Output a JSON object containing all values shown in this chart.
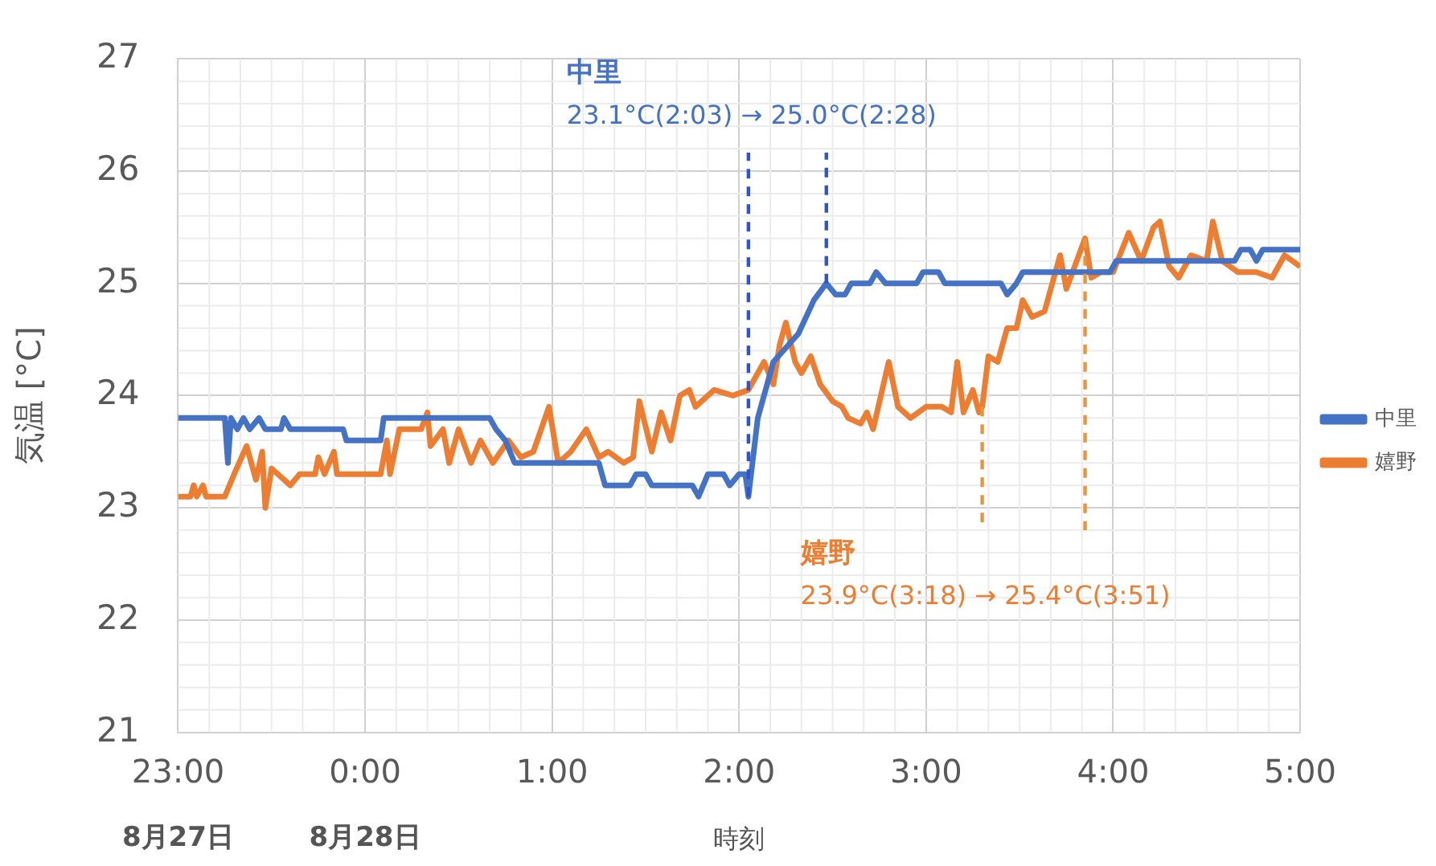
{
  "chart_data": {
    "type": "line",
    "xlabel": "時刻",
    "ylabel": "気温 [°C]",
    "xlim": [
      "--08-27T23:00",
      "--08-28T05:00"
    ],
    "xticks": [
      {
        "value": "--08-27T23:00",
        "label": "23:00"
      },
      {
        "value": "--08-28T00:00",
        "label": "0:00"
      },
      {
        "value": "--08-28T01:00",
        "label": "1:00"
      },
      {
        "value": "--08-28T02:00",
        "label": "2:00"
      },
      {
        "value": "--08-28T03:00",
        "label": "3:00"
      },
      {
        "value": "--08-28T04:00",
        "label": "4:00"
      },
      {
        "value": "--08-28T05:00",
        "label": "5:00"
      }
    ],
    "ylim": [
      21,
      27
    ],
    "yticks": [
      21,
      22,
      23,
      24,
      25,
      26,
      27
    ],
    "grid": true,
    "legend": "right",
    "marker": "none",
    "line_style": "solid",
    "series": [
      {
        "name": "中里",
        "color": "#4472c4",
        "x": [
          "--08-27T23:00",
          "--08-27T23:15",
          "--08-27T23:16",
          "--08-27T23:17",
          "--08-27T23:19",
          "--08-27T23:21",
          "--08-27T23:23",
          "--08-27T23:26",
          "--08-27T23:28",
          "--08-27T23:33",
          "--08-27T23:34",
          "--08-27T23:36",
          "--08-27T23:53",
          "--08-27T23:54",
          "--08-28T00:05",
          "--08-28T00:06",
          "--08-28T00:40",
          "--08-28T00:42",
          "--08-28T00:45",
          "--08-28T00:48",
          "--08-28T01:15",
          "--08-28T01:17",
          "--08-28T01:25",
          "--08-28T01:27",
          "--08-28T01:30",
          "--08-28T01:32",
          "--08-28T01:45",
          "--08-28T01:47",
          "--08-28T01:50",
          "--08-28T01:55",
          "--08-28T01:57",
          "--08-28T02:00",
          "--08-28T02:02",
          "--08-28T02:03",
          "--08-28T02:06",
          "--08-28T02:11",
          "--08-28T02:19",
          "--08-28T02:24",
          "--08-28T02:28",
          "--08-28T02:31",
          "--08-28T02:34",
          "--08-28T02:36",
          "--08-28T02:42",
          "--08-28T02:44",
          "--08-28T02:47",
          "--08-28T02:57",
          "--08-28T02:59",
          "--08-28T03:04",
          "--08-28T03:06",
          "--08-28T03:24",
          "--08-28T03:26",
          "--08-28T03:29",
          "--08-28T03:31",
          "--08-28T03:59",
          "--08-28T04:01",
          "--08-28T04:39",
          "--08-28T04:41",
          "--08-28T04:44",
          "--08-28T04:46",
          "--08-28T04:48",
          "--08-28T05:00"
        ],
        "values": [
          23.8,
          23.8,
          23.4,
          23.8,
          23.7,
          23.8,
          23.7,
          23.8,
          23.7,
          23.7,
          23.8,
          23.7,
          23.7,
          23.6,
          23.6,
          23.8,
          23.8,
          23.7,
          23.6,
          23.4,
          23.4,
          23.2,
          23.2,
          23.3,
          23.3,
          23.2,
          23.2,
          23.1,
          23.3,
          23.3,
          23.2,
          23.3,
          23.3,
          23.1,
          23.8,
          24.3,
          24.55,
          24.85,
          25.0,
          24.9,
          24.9,
          25.0,
          25.0,
          25.1,
          25.0,
          25.0,
          25.1,
          25.1,
          25.0,
          25.0,
          24.9,
          25.0,
          25.1,
          25.1,
          25.2,
          25.2,
          25.3,
          25.3,
          25.2,
          25.3,
          25.3
        ]
      },
      {
        "name": "嬉野",
        "color": "#ed7d31",
        "x": [
          "--08-27T23:00",
          "--08-27T23:04",
          "--08-27T23:05",
          "--08-27T23:06",
          "--08-27T23:08",
          "--08-27T23:09",
          "--08-27T23:15",
          "--08-27T23:18",
          "--08-27T23:22",
          "--08-27T23:25",
          "--08-27T23:27",
          "--08-27T23:28",
          "--08-27T23:30",
          "--08-27T23:36",
          "--08-27T23:39",
          "--08-27T23:44",
          "--08-27T23:45",
          "--08-27T23:47",
          "--08-27T23:50",
          "--08-27T23:51",
          "--08-28T00:05",
          "--08-28T00:07",
          "--08-28T00:08",
          "--08-28T00:11",
          "--08-28T00:18",
          "--08-28T00:20",
          "--08-28T00:21",
          "--08-28T00:25",
          "--08-28T00:27",
          "--08-28T00:30",
          "--08-28T00:34",
          "--08-28T00:37",
          "--08-28T00:41",
          "--08-28T00:46",
          "--08-28T00:50",
          "--08-28T00:54",
          "--08-28T00:59",
          "--08-28T01:02",
          "--08-28T01:06",
          "--08-28T01:11",
          "--08-28T01:15",
          "--08-28T01:18",
          "--08-28T01:23",
          "--08-28T01:26",
          "--08-28T01:28",
          "--08-28T01:32",
          "--08-28T01:35",
          "--08-28T01:38",
          "--08-28T01:41",
          "--08-28T01:44",
          "--08-28T01:46",
          "--08-28T01:52",
          "--08-28T01:58",
          "--08-28T02:03",
          "--08-28T02:08",
          "--08-28T02:11",
          "--08-28T02:13",
          "--08-28T02:15",
          "--08-28T02:18",
          "--08-28T02:20",
          "--08-28T02:23",
          "--08-28T02:26",
          "--08-28T02:30",
          "--08-28T02:33",
          "--08-28T02:35",
          "--08-28T02:39",
          "--08-28T02:41",
          "--08-28T02:43",
          "--08-28T02:48",
          "--08-28T02:51",
          "--08-28T02:55",
          "--08-28T03:00",
          "--08-28T03:05",
          "--08-28T03:08",
          "--08-28T03:10",
          "--08-28T03:12",
          "--08-28T03:15",
          "--08-28T03:17",
          "--08-28T03:18",
          "--08-28T03:20",
          "--08-28T03:23",
          "--08-28T03:26",
          "--08-28T03:29",
          "--08-28T03:31",
          "--08-28T03:34",
          "--08-28T03:38",
          "--08-28T03:40",
          "--08-28T03:43",
          "--08-28T03:45",
          "--08-28T03:51",
          "--08-28T03:53",
          "--08-28T03:56",
          "--08-28T04:00",
          "--08-28T04:05",
          "--08-28T04:09",
          "--08-28T04:13",
          "--08-28T04:15",
          "--08-28T04:18",
          "--08-28T04:21",
          "--08-28T04:25",
          "--08-28T04:30",
          "--08-28T04:32",
          "--08-28T04:35",
          "--08-28T04:40",
          "--08-28T04:46",
          "--08-28T04:51",
          "--08-28T04:55",
          "--08-28T05:00"
        ],
        "values": [
          23.1,
          23.1,
          23.2,
          23.1,
          23.2,
          23.1,
          23.1,
          23.3,
          23.55,
          23.25,
          23.5,
          23.0,
          23.35,
          23.2,
          23.3,
          23.3,
          23.45,
          23.3,
          23.5,
          23.3,
          23.3,
          23.6,
          23.3,
          23.7,
          23.7,
          23.85,
          23.55,
          23.7,
          23.4,
          23.7,
          23.4,
          23.6,
          23.4,
          23.6,
          23.45,
          23.5,
          23.9,
          23.4,
          23.5,
          23.7,
          23.45,
          23.5,
          23.4,
          23.45,
          23.95,
          23.5,
          23.85,
          23.6,
          24.0,
          24.05,
          23.9,
          24.05,
          24.0,
          24.05,
          24.3,
          24.1,
          24.45,
          24.65,
          24.3,
          24.2,
          24.35,
          24.1,
          23.95,
          23.9,
          23.8,
          23.75,
          23.85,
          23.7,
          24.3,
          23.9,
          23.8,
          23.9,
          23.9,
          23.85,
          24.3,
          23.85,
          24.05,
          23.85,
          23.9,
          24.35,
          24.3,
          24.6,
          24.6,
          24.85,
          24.7,
          24.75,
          24.95,
          25.25,
          24.95,
          25.4,
          25.05,
          25.1,
          25.1,
          25.45,
          25.2,
          25.5,
          25.55,
          25.15,
          25.05,
          25.25,
          25.2,
          25.55,
          25.2,
          25.1,
          25.1,
          25.05,
          25.25,
          25.15
        ]
      }
    ],
    "ref_lines": [
      {
        "axis": "x",
        "value": "--08-28T02:03",
        "color": "#2f55c9",
        "line_style": "dashed"
      },
      {
        "axis": "x",
        "value": "--08-28T02:28",
        "color": "#2f55c9",
        "line_style": "dashed"
      },
      {
        "axis": "x",
        "value": "--08-28T03:18",
        "color": "#e8963e",
        "line_style": "dashed"
      },
      {
        "axis": "x",
        "value": "--08-28T03:51",
        "color": "#e8963e",
        "line_style": "dashed"
      }
    ],
    "annotations": [
      "中里",
      "23.1°C(2:03) → 25.0°C(2:28)",
      "嬉野",
      "23.9°C(3:18) → 25.4°C(3:51)",
      "8月27日",
      "8月28日"
    ]
  }
}
